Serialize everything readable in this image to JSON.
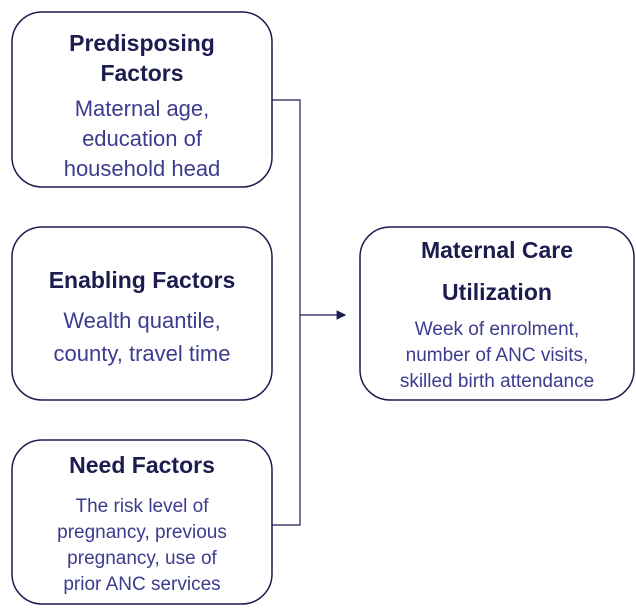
{
  "nodes": [
    {
      "title": [
        "Predisposing",
        "Factors"
      ],
      "description": [
        "Maternal age,",
        "education of",
        "household head"
      ]
    },
    {
      "title": [
        "Enabling Factors"
      ],
      "description": [
        "Wealth quantile,",
        "county, travel time"
      ]
    },
    {
      "title": [
        "Need Factors"
      ],
      "description": [
        "The risk level of",
        "pregnancy, previous",
        "pregnancy, use of",
        "prior ANC services"
      ]
    },
    {
      "title": [
        "Maternal Care",
        "Utilization"
      ],
      "description": [
        "Week of enrolment,",
        "number of ANC visits,",
        "skilled birth attendance"
      ]
    }
  ]
}
